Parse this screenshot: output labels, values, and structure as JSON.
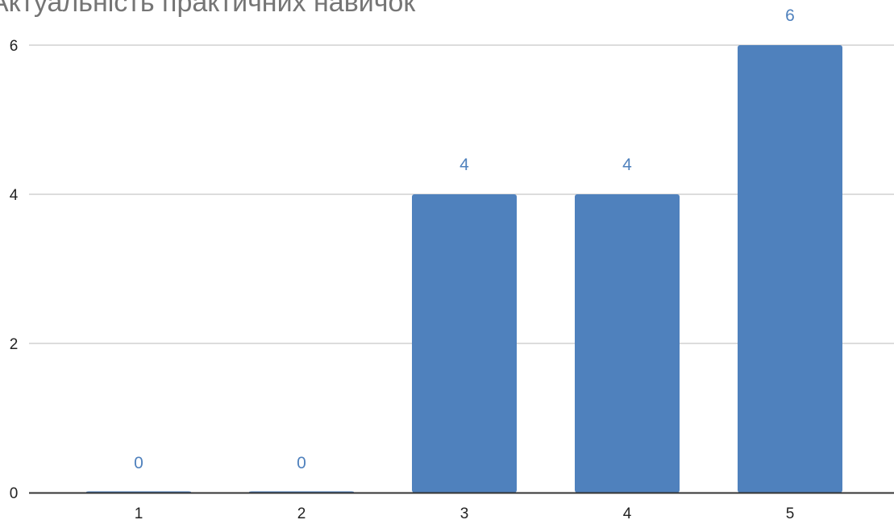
{
  "chart_data": {
    "type": "bar",
    "title": "Актуальність практичних навичок",
    "categories": [
      "1",
      "2",
      "3",
      "4",
      "5"
    ],
    "values": [
      0,
      0,
      4,
      4,
      6
    ],
    "data_labels": [
      "0",
      "0",
      "4",
      "4",
      "6"
    ],
    "yticks": [
      "0",
      "2",
      "4",
      "6"
    ],
    "ylim": [
      0,
      6
    ],
    "xlabel": "",
    "ylabel": "",
    "grid": true,
    "colors": {
      "bar": "#4f81bd",
      "label": "#4f81bd",
      "grid": "#d0d0d0",
      "axis": "#333333"
    }
  }
}
